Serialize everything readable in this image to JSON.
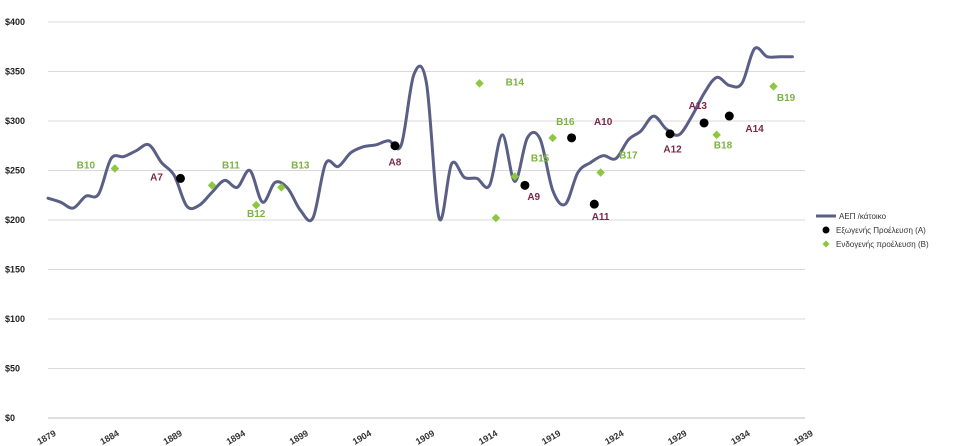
{
  "chart_data": {
    "type": "line",
    "y_ticks": [
      "$0",
      "$50",
      "$100",
      "$150",
      "$200",
      "$250",
      "$300",
      "$350",
      "$400"
    ],
    "ylim": [
      0,
      400
    ],
    "x_ticks": [
      "1879",
      "1884",
      "1889",
      "1894",
      "1899",
      "1904",
      "1909",
      "1914",
      "1919",
      "1924",
      "1929",
      "1934",
      "1939"
    ],
    "xlim": [
      1879,
      1939
    ],
    "grid": true,
    "legend_placement": "right",
    "colors": {
      "line": "#5a5f86",
      "exogenous": "#000000",
      "endogenous": "#8dc63f",
      "label_a": "#7b2748",
      "label_b": "#7cb342"
    },
    "series": [
      {
        "name": "ΑΕΠ /κάτοικο",
        "x": [
          1879,
          1880,
          1881,
          1882,
          1883,
          1884,
          1885,
          1886,
          1887,
          1888,
          1889,
          1890,
          1891,
          1892,
          1893,
          1894,
          1895,
          1896,
          1897,
          1898,
          1899,
          1900,
          1901,
          1902,
          1903,
          1904,
          1905,
          1906,
          1907,
          1908,
          1909,
          1910,
          1911,
          1912,
          1913,
          1914,
          1915,
          1916,
          1917,
          1918,
          1919,
          1920,
          1921,
          1922,
          1923,
          1924,
          1925,
          1926,
          1927,
          1928,
          1929,
          1930,
          1931,
          1932,
          1933,
          1934,
          1935,
          1936,
          1937,
          1938
        ],
        "y": [
          222,
          218,
          212,
          224,
          226,
          262,
          264,
          270,
          276,
          258,
          245,
          214,
          215,
          228,
          240,
          233,
          250,
          218,
          238,
          232,
          210,
          202,
          257,
          254,
          268,
          274,
          276,
          280,
          276,
          347,
          338,
          202,
          257,
          243,
          242,
          235,
          286,
          239,
          283,
          282,
          230,
          216,
          248,
          258,
          265,
          262,
          281,
          290,
          305,
          292,
          286,
          304,
          328,
          344,
          336,
          338,
          373,
          365,
          365,
          365
        ]
      }
    ],
    "markers": [
      {
        "id": "A7",
        "group": "A",
        "x": 1889.5,
        "y": 242
      },
      {
        "id": "A8",
        "group": "A",
        "x": 1906.5,
        "y": 275
      },
      {
        "id": "A9",
        "group": "A",
        "x": 1916.8,
        "y": 235
      },
      {
        "id": "A10",
        "group": "A",
        "x": 1920.5,
        "y": 283
      },
      {
        "id": "A11",
        "group": "A",
        "x": 1922.3,
        "y": 216
      },
      {
        "id": "A12",
        "group": "A",
        "x": 1928.3,
        "y": 287
      },
      {
        "id": "A13",
        "group": "A",
        "x": 1931,
        "y": 298
      },
      {
        "id": "A14",
        "group": "A",
        "x": 1933,
        "y": 305
      },
      {
        "id": "B10",
        "group": "B",
        "x": 1884.3,
        "y": 252
      },
      {
        "id": "B11",
        "group": "B",
        "x": 1892,
        "y": 235
      },
      {
        "id": "B12",
        "group": "B",
        "x": 1895.5,
        "y": 215
      },
      {
        "id": "B13",
        "group": "B",
        "x": 1897.5,
        "y": 233
      },
      {
        "id": "B14",
        "group": "B",
        "x": 1913.2,
        "y": 338
      },
      {
        "id": "B14",
        "group": "B",
        "x": 1914.5,
        "y": 202
      },
      {
        "id": "B15",
        "group": "B",
        "x": 1916,
        "y": 244
      },
      {
        "id": "B16",
        "group": "B",
        "x": 1919,
        "y": 283
      },
      {
        "id": "B17",
        "group": "B",
        "x": 1922.8,
        "y": 248
      },
      {
        "id": "B18",
        "group": "B",
        "x": 1932,
        "y": 286
      },
      {
        "id": "B19",
        "group": "B",
        "x": 1936.5,
        "y": 335
      }
    ],
    "labels": [
      {
        "text": "B10",
        "group": "B",
        "x": 1882,
        "y": 252
      },
      {
        "text": "A7",
        "group": "A",
        "x": 1887.6,
        "y": 240
      },
      {
        "text": "B11",
        "group": "B",
        "x": 1893.5,
        "y": 252
      },
      {
        "text": "B12",
        "group": "B",
        "x": 1895.5,
        "y": 203
      },
      {
        "text": "B13",
        "group": "B",
        "x": 1899,
        "y": 252
      },
      {
        "text": "A8",
        "group": "A",
        "x": 1906.5,
        "y": 255
      },
      {
        "text": "B14",
        "group": "B",
        "x": 1916,
        "y": 336
      },
      {
        "text": "B15",
        "group": "B",
        "x": 1918,
        "y": 259
      },
      {
        "text": "A9",
        "group": "A",
        "x": 1917.5,
        "y": 220
      },
      {
        "text": "B16",
        "group": "B",
        "x": 1920,
        "y": 296
      },
      {
        "text": "A10",
        "group": "A",
        "x": 1923,
        "y": 296
      },
      {
        "text": "B17",
        "group": "B",
        "x": 1925,
        "y": 262
      },
      {
        "text": "A11",
        "group": "A",
        "x": 1922.8,
        "y": 200
      },
      {
        "text": "A12",
        "group": "A",
        "x": 1928.5,
        "y": 268
      },
      {
        "text": "A13",
        "group": "A",
        "x": 1930.5,
        "y": 312
      },
      {
        "text": "B18",
        "group": "B",
        "x": 1932.5,
        "y": 272
      },
      {
        "text": "A14",
        "group": "A",
        "x": 1935,
        "y": 289
      },
      {
        "text": "B19",
        "group": "B",
        "x": 1937.5,
        "y": 320
      }
    ],
    "legend": [
      {
        "key": "line",
        "label": "ΑΕΠ /κάτοικο"
      },
      {
        "key": "A",
        "label": "Εξωγενής Προέλευση (Α)"
      },
      {
        "key": "B",
        "label": "Ενδογενής προέλευση (Β)"
      }
    ]
  }
}
